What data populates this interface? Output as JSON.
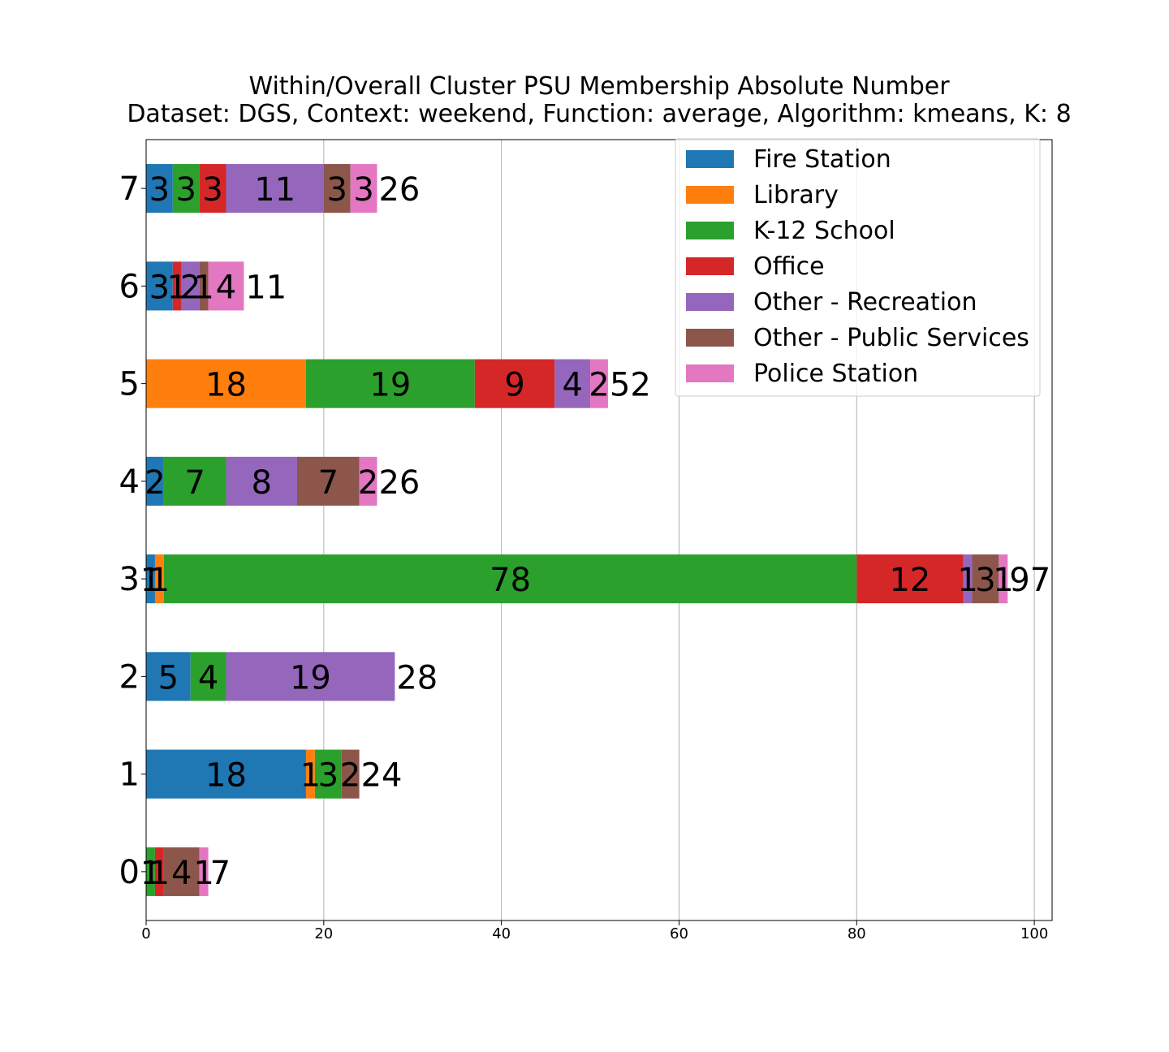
{
  "chart_data": {
    "type": "bar",
    "orientation": "horizontal",
    "stacked": true,
    "title_lines": [
      "Within/Overall Cluster PSU Membership Absolute Number",
      "Dataset: DGS, Context: weekend, Function: average, Algorithm: kmeans, K: 8"
    ],
    "xlabel": "",
    "ylabel": "",
    "xlim": [
      0,
      102
    ],
    "xticks": [
      "0",
      "20",
      "40",
      "60",
      "80",
      "100"
    ],
    "xtick_values": [
      0,
      20,
      40,
      60,
      80,
      100
    ],
    "grid": "x-axis vertical lines",
    "legend_position": "top-right",
    "categories": [
      "0",
      "1",
      "2",
      "3",
      "4",
      "5",
      "6",
      "7"
    ],
    "series": [
      {
        "name": "Fire Station",
        "color": "#1f77b4",
        "values": [
          0,
          18,
          5,
          1,
          2,
          0,
          3,
          3
        ]
      },
      {
        "name": "Library",
        "color": "#ff7f0e",
        "values": [
          0,
          1,
          0,
          1,
          0,
          18,
          0,
          0
        ]
      },
      {
        "name": "K-12 School",
        "color": "#2ca02c",
        "values": [
          1,
          3,
          4,
          78,
          7,
          19,
          0,
          3
        ]
      },
      {
        "name": "Office",
        "color": "#d62728",
        "values": [
          1,
          0,
          0,
          12,
          0,
          9,
          1,
          3
        ]
      },
      {
        "name": "Other - Recreation",
        "color": "#9467bd",
        "values": [
          0,
          0,
          19,
          1,
          8,
          4,
          2,
          11
        ]
      },
      {
        "name": "Other - Public Services",
        "color": "#8c564b",
        "values": [
          4,
          2,
          0,
          3,
          7,
          0,
          1,
          3
        ]
      },
      {
        "name": "Police Station",
        "color": "#e377c2",
        "values": [
          1,
          0,
          0,
          1,
          2,
          2,
          4,
          3
        ]
      }
    ],
    "totals": [
      7,
      24,
      28,
      97,
      26,
      52,
      11,
      26
    ]
  }
}
